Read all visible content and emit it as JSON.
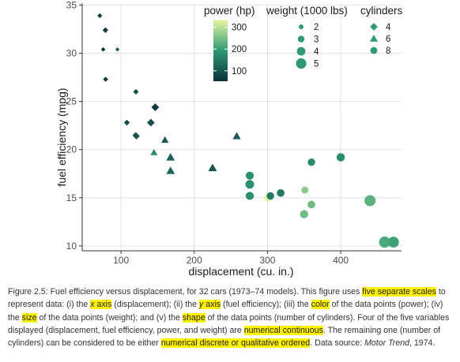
{
  "chart_data": {
    "type": "scatter",
    "xlabel": "displacement (cu. in.)",
    "ylabel": "fuel efficiency (mpg)",
    "xlim": [
      47,
      483
    ],
    "ylim": [
      9.5,
      35.2
    ],
    "x_ticks": [
      100,
      200,
      300,
      400
    ],
    "y_ticks": [
      10,
      15,
      20,
      25,
      30,
      35
    ],
    "grid": "on",
    "legend_position": "top-right",
    "color_scale": {
      "title": "power (hp)",
      "min": 52,
      "max": 335,
      "ticks": [
        100,
        200,
        300
      ],
      "low_color": "#0b2f3a",
      "mid_color": "#2e9a75",
      "high_color": "#e6f5a0"
    },
    "size_scale": {
      "title": "weight (1000 lbs)",
      "ticks": [
        2,
        3,
        4,
        5
      ]
    },
    "shape_scale": {
      "title": "cylinders",
      "entries": [
        {
          "label": "4",
          "shape": "diamond"
        },
        {
          "label": "6",
          "shape": "triangle"
        },
        {
          "label": "8",
          "shape": "circle"
        }
      ]
    },
    "points": [
      {
        "x": 160,
        "y": 21.0,
        "hp": 110,
        "wt": 2.62,
        "cyl": 6
      },
      {
        "x": 160,
        "y": 21.0,
        "hp": 110,
        "wt": 2.875,
        "cyl": 6
      },
      {
        "x": 108,
        "y": 22.8,
        "hp": 93,
        "wt": 2.32,
        "cyl": 4
      },
      {
        "x": 258,
        "y": 21.4,
        "hp": 110,
        "wt": 3.215,
        "cyl": 6
      },
      {
        "x": 360,
        "y": 18.7,
        "hp": 175,
        "wt": 3.44,
        "cyl": 8
      },
      {
        "x": 225,
        "y": 18.1,
        "hp": 105,
        "wt": 3.46,
        "cyl": 6
      },
      {
        "x": 360,
        "y": 14.3,
        "hp": 245,
        "wt": 3.57,
        "cyl": 8
      },
      {
        "x": 146.7,
        "y": 24.4,
        "hp": 62,
        "wt": 3.19,
        "cyl": 4
      },
      {
        "x": 140.8,
        "y": 22.8,
        "hp": 95,
        "wt": 3.15,
        "cyl": 4
      },
      {
        "x": 167.6,
        "y": 19.2,
        "hp": 123,
        "wt": 3.44,
        "cyl": 6
      },
      {
        "x": 167.6,
        "y": 17.8,
        "hp": 123,
        "wt": 3.44,
        "cyl": 6
      },
      {
        "x": 275.8,
        "y": 16.4,
        "hp": 180,
        "wt": 4.07,
        "cyl": 8
      },
      {
        "x": 275.8,
        "y": 17.3,
        "hp": 180,
        "wt": 3.73,
        "cyl": 8
      },
      {
        "x": 275.8,
        "y": 15.2,
        "hp": 180,
        "wt": 3.78,
        "cyl": 8
      },
      {
        "x": 472,
        "y": 10.4,
        "hp": 205,
        "wt": 5.25,
        "cyl": 8
      },
      {
        "x": 460,
        "y": 10.4,
        "hp": 215,
        "wt": 5.424,
        "cyl": 8
      },
      {
        "x": 440,
        "y": 14.7,
        "hp": 230,
        "wt": 5.345,
        "cyl": 8
      },
      {
        "x": 78.7,
        "y": 32.4,
        "hp": 66,
        "wt": 2.2,
        "cyl": 4
      },
      {
        "x": 75.7,
        "y": 30.4,
        "hp": 52,
        "wt": 1.615,
        "cyl": 4
      },
      {
        "x": 71.1,
        "y": 33.9,
        "hp": 65,
        "wt": 1.835,
        "cyl": 4
      },
      {
        "x": 120.1,
        "y": 21.5,
        "hp": 97,
        "wt": 2.465,
        "cyl": 4
      },
      {
        "x": 318,
        "y": 15.5,
        "hp": 150,
        "wt": 3.52,
        "cyl": 8
      },
      {
        "x": 304,
        "y": 15.2,
        "hp": 150,
        "wt": 3.435,
        "cyl": 8
      },
      {
        "x": 350,
        "y": 13.3,
        "hp": 245,
        "wt": 3.84,
        "cyl": 8
      },
      {
        "x": 400,
        "y": 19.2,
        "hp": 175,
        "wt": 3.845,
        "cyl": 8
      },
      {
        "x": 79,
        "y": 27.3,
        "hp": 66,
        "wt": 1.935,
        "cyl": 4
      },
      {
        "x": 120.3,
        "y": 26.0,
        "hp": 91,
        "wt": 2.14,
        "cyl": 4
      },
      {
        "x": 95.1,
        "y": 30.4,
        "hp": 113,
        "wt": 1.513,
        "cyl": 4
      },
      {
        "x": 351,
        "y": 15.8,
        "hp": 264,
        "wt": 3.17,
        "cyl": 8
      },
      {
        "x": 145,
        "y": 19.7,
        "hp": 175,
        "wt": 2.77,
        "cyl": 6
      },
      {
        "x": 301,
        "y": 15.0,
        "hp": 335,
        "wt": 3.57,
        "cyl": 8
      },
      {
        "x": 121,
        "y": 21.4,
        "hp": 109,
        "wt": 2.78,
        "cyl": 4
      }
    ]
  },
  "caption": {
    "p1": "Figure 2.5: Fuel efficiency versus displacement, for 32 cars (1973–74 models). This figure uses ",
    "h1": "five separate scales",
    "p2": " to represent data: (i) the ",
    "h2a": "x",
    "h2b": " axis",
    "p3": " (displacement); (ii) the ",
    "h3a": "y",
    "h3b": " axis",
    "p4": " (fuel efficiency); (iii) the ",
    "h4": "color",
    "p5": " of the data points (power); (iv) the ",
    "h5": "size",
    "p6": " of the data points (weight); and (v) the ",
    "h6": "shape",
    "p7": " of the data points (number of cylinders). Four of the five variables displayed (displacement, fuel efficiency, power, and weight) are ",
    "h7": "numerical continuous",
    "p8": ". The remaining one (number of cylinders) can be considered to be either ",
    "h8": "numerical discrete or qualitative ordered",
    "p9": ". Data source: ",
    "source": "Motor Trend",
    "p10": ", 1974."
  }
}
